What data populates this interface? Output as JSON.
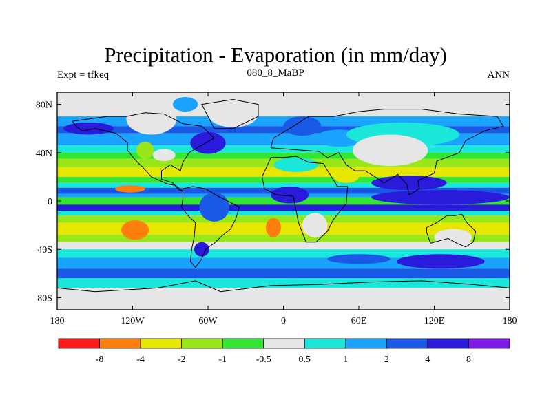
{
  "header": {
    "title": "Precipitation - Evaporation (in mm/day)",
    "left": "Expt = tfkeq",
    "center": "080_8_MaBP",
    "right": "ANN"
  },
  "chart_data": {
    "type": "heatmap",
    "title": "Precipitation - Evaporation (in mm/day)",
    "xlabel": "",
    "ylabel": "",
    "xlim": [
      -180,
      180
    ],
    "ylim": [
      -90,
      90
    ],
    "x_ticks": [
      {
        "value": -180,
        "label": "180"
      },
      {
        "value": -120,
        "label": "120W"
      },
      {
        "value": -60,
        "label": "60W"
      },
      {
        "value": 0,
        "label": "0"
      },
      {
        "value": 60,
        "label": "60E"
      },
      {
        "value": 120,
        "label": "120E"
      },
      {
        "value": 180,
        "label": "180"
      }
    ],
    "y_ticks": [
      {
        "value": 80,
        "label": "80N"
      },
      {
        "value": 40,
        "label": "40N"
      },
      {
        "value": 0,
        "label": "0"
      },
      {
        "value": -40,
        "label": "40S"
      },
      {
        "value": -80,
        "label": "80S"
      }
    ],
    "colorbar": {
      "colors": [
        "#ff1a1a",
        "#ff7f0e",
        "#e6e600",
        "#99e619",
        "#33e633",
        "#e6e6e6",
        "#1ae6d9",
        "#1aa3ff",
        "#1a59e6",
        "#2a1ad9",
        "#7f1ae6"
      ],
      "levels": [
        "-8",
        "-4",
        "-2",
        "-1",
        "-0.5",
        "0.5",
        "1",
        "2",
        "4",
        "8"
      ]
    },
    "zonal_bands": [
      {
        "lat_min": 70,
        "lat_max": 90,
        "class": 5
      },
      {
        "lat_min": 62,
        "lat_max": 70,
        "class": 7
      },
      {
        "lat_min": 56,
        "lat_max": 62,
        "class": 8
      },
      {
        "lat_min": 46,
        "lat_max": 56,
        "class": 7
      },
      {
        "lat_min": 40,
        "lat_max": 46,
        "class": 6
      },
      {
        "lat_min": 35,
        "lat_max": 40,
        "class": 4
      },
      {
        "lat_min": 28,
        "lat_max": 35,
        "class": 3
      },
      {
        "lat_min": 20,
        "lat_max": 28,
        "class": 2
      },
      {
        "lat_min": 15,
        "lat_max": 20,
        "class": 4
      },
      {
        "lat_min": 11,
        "lat_max": 15,
        "class": 6
      },
      {
        "lat_min": 6,
        "lat_max": 11,
        "class": 8
      },
      {
        "lat_min": 3,
        "lat_max": 6,
        "class": 7
      },
      {
        "lat_min": -3,
        "lat_max": 3,
        "class": 4
      },
      {
        "lat_min": -8,
        "lat_max": -3,
        "class": 9
      },
      {
        "lat_min": -12,
        "lat_max": -8,
        "class": 6
      },
      {
        "lat_min": -18,
        "lat_max": -12,
        "class": 3
      },
      {
        "lat_min": -28,
        "lat_max": -18,
        "class": 2
      },
      {
        "lat_min": -34,
        "lat_max": -28,
        "class": 3
      },
      {
        "lat_min": -40,
        "lat_max": -34,
        "class": 5
      },
      {
        "lat_min": -47,
        "lat_max": -40,
        "class": 6
      },
      {
        "lat_min": -56,
        "lat_max": -47,
        "class": 7
      },
      {
        "lat_min": -64,
        "lat_max": -56,
        "class": 8
      },
      {
        "lat_min": -72,
        "lat_max": -64,
        "class": 6
      },
      {
        "lat_min": -80,
        "lat_max": -72,
        "class": 5
      },
      {
        "lat_min": -90,
        "lat_max": -80,
        "class": 5
      }
    ],
    "patches": [
      {
        "lon": -155,
        "lat": 60,
        "w": 40,
        "h": 10,
        "class": 9
      },
      {
        "lon": -105,
        "lat": 68,
        "w": 40,
        "h": 26,
        "class": 5
      },
      {
        "lon": -110,
        "lat": 42,
        "w": 14,
        "h": 14,
        "class": 3
      },
      {
        "lon": -95,
        "lat": 38,
        "w": 18,
        "h": 10,
        "class": 5
      },
      {
        "lon": -60,
        "lat": 48,
        "w": 28,
        "h": 18,
        "class": 9
      },
      {
        "lon": -78,
        "lat": 80,
        "w": 20,
        "h": 12,
        "class": 7
      },
      {
        "lon": -40,
        "lat": 72,
        "w": 40,
        "h": 22,
        "class": 5
      },
      {
        "lon": 15,
        "lat": 62,
        "w": 30,
        "h": 16,
        "class": 8
      },
      {
        "lon": 45,
        "lat": 52,
        "w": 40,
        "h": 14,
        "class": 7
      },
      {
        "lon": 95,
        "lat": 55,
        "w": 90,
        "h": 20,
        "class": 6
      },
      {
        "lon": 10,
        "lat": 30,
        "w": 35,
        "h": 12,
        "class": 6
      },
      {
        "lon": 50,
        "lat": 20,
        "w": 20,
        "h": 10,
        "class": 2
      },
      {
        "lon": 85,
        "lat": 42,
        "w": 60,
        "h": 26,
        "class": 5
      },
      {
        "lon": 100,
        "lat": 15,
        "w": 60,
        "h": 12,
        "class": 9
      },
      {
        "lon": -122,
        "lat": 10,
        "w": 24,
        "h": 6,
        "class": 1
      },
      {
        "lon": -118,
        "lat": -24,
        "w": 22,
        "h": 16,
        "class": 1
      },
      {
        "lon": -8,
        "lat": -22,
        "w": 12,
        "h": 16,
        "class": 1
      },
      {
        "lon": 5,
        "lat": 5,
        "w": 30,
        "h": 14,
        "class": 9
      },
      {
        "lon": 25,
        "lat": -20,
        "w": 20,
        "h": 20,
        "class": 5
      },
      {
        "lon": -55,
        "lat": -5,
        "w": 24,
        "h": 24,
        "class": 8
      },
      {
        "lon": -65,
        "lat": -40,
        "w": 12,
        "h": 12,
        "class": 9
      },
      {
        "lon": 125,
        "lat": 3,
        "w": 110,
        "h": 12,
        "class": 9
      },
      {
        "lon": 135,
        "lat": -30,
        "w": 30,
        "h": 14,
        "class": 5
      },
      {
        "lon": 125,
        "lat": -50,
        "w": 70,
        "h": 12,
        "class": 9
      },
      {
        "lon": 60,
        "lat": -48,
        "w": 50,
        "h": 8,
        "class": 8
      }
    ],
    "land_outlines": [
      [
        [
          -168,
          66
        ],
        [
          -140,
          70
        ],
        [
          -125,
          70
        ],
        [
          -110,
          73
        ],
        [
          -95,
          72
        ],
        [
          -80,
          64
        ],
        [
          -65,
          62
        ],
        [
          -55,
          52
        ],
        [
          -67,
          45
        ],
        [
          -75,
          40
        ],
        [
          -80,
          32
        ],
        [
          -82,
          25
        ],
        [
          -90,
          30
        ],
        [
          -97,
          25
        ],
        [
          -97,
          18
        ],
        [
          -88,
          15
        ],
        [
          -83,
          9
        ],
        [
          -80,
          8
        ],
        [
          -86,
          13
        ],
        [
          -92,
          14
        ],
        [
          -105,
          20
        ],
        [
          -112,
          28
        ],
        [
          -118,
          34
        ],
        [
          -124,
          42
        ],
        [
          -124,
          48
        ],
        [
          -133,
          56
        ],
        [
          -150,
          60
        ],
        [
          -160,
          58
        ],
        [
          -165,
          62
        ],
        [
          -168,
          66
        ]
      ],
      [
        [
          -80,
          10
        ],
        [
          -72,
          12
        ],
        [
          -62,
          10
        ],
        [
          -52,
          4
        ],
        [
          -35,
          -5
        ],
        [
          -38,
          -15
        ],
        [
          -42,
          -23
        ],
        [
          -48,
          -28
        ],
        [
          -55,
          -35
        ],
        [
          -62,
          -40
        ],
        [
          -65,
          -48
        ],
        [
          -70,
          -55
        ],
        [
          -74,
          -50
        ],
        [
          -73,
          -40
        ],
        [
          -71,
          -30
        ],
        [
          -70,
          -18
        ],
        [
          -76,
          -12
        ],
        [
          -81,
          -5
        ],
        [
          -80,
          2
        ],
        [
          -80,
          10
        ]
      ],
      [
        [
          -10,
          36
        ],
        [
          0,
          36
        ],
        [
          10,
          37
        ],
        [
          20,
          32
        ],
        [
          32,
          31
        ],
        [
          34,
          27
        ],
        [
          43,
          12
        ],
        [
          51,
          12
        ],
        [
          50,
          -2
        ],
        [
          40,
          -15
        ],
        [
          35,
          -25
        ],
        [
          26,
          -34
        ],
        [
          18,
          -34
        ],
        [
          12,
          -18
        ],
        [
          9,
          -2
        ],
        [
          8,
          4
        ],
        [
          -5,
          5
        ],
        [
          -15,
          10
        ],
        [
          -17,
          20
        ],
        [
          -10,
          36
        ]
      ],
      [
        [
          -10,
          44
        ],
        [
          -8,
          52
        ],
        [
          5,
          60
        ],
        [
          20,
          70
        ],
        [
          40,
          70
        ],
        [
          60,
          74
        ],
        [
          80,
          76
        ],
        [
          110,
          76
        ],
        [
          140,
          72
        ],
        [
          170,
          70
        ],
        [
          175,
          62
        ],
        [
          160,
          58
        ],
        [
          145,
          50
        ],
        [
          140,
          40
        ],
        [
          122,
          33
        ],
        [
          120,
          23
        ],
        [
          107,
          17
        ],
        [
          108,
          10
        ],
        [
          100,
          5
        ],
        [
          98,
          14
        ],
        [
          91,
          22
        ],
        [
          80,
          15
        ],
        [
          73,
          20
        ],
        [
          65,
          25
        ],
        [
          57,
          25
        ],
        [
          50,
          30
        ],
        [
          44,
          40
        ],
        [
          35,
          36
        ],
        [
          28,
          41
        ],
        [
          15,
          42
        ],
        [
          3,
          43
        ],
        [
          -10,
          44
        ]
      ],
      [
        [
          114,
          -22
        ],
        [
          122,
          -18
        ],
        [
          130,
          -12
        ],
        [
          137,
          -12
        ],
        [
          142,
          -11
        ],
        [
          146,
          -18
        ],
        [
          153,
          -25
        ],
        [
          151,
          -34
        ],
        [
          145,
          -38
        ],
        [
          138,
          -35
        ],
        [
          131,
          -31
        ],
        [
          117,
          -35
        ],
        [
          114,
          -26
        ],
        [
          114,
          -22
        ]
      ],
      [
        [
          -55,
          60
        ],
        [
          -40,
          60
        ],
        [
          -20,
          70
        ],
        [
          -20,
          80
        ],
        [
          -40,
          84
        ],
        [
          -65,
          80
        ],
        [
          -60,
          70
        ],
        [
          -55,
          60
        ]
      ],
      [
        [
          -180,
          -72
        ],
        [
          -150,
          -75
        ],
        [
          -100,
          -72
        ],
        [
          -70,
          -66
        ],
        [
          -50,
          -75
        ],
        [
          -10,
          -70
        ],
        [
          30,
          -69
        ],
        [
          70,
          -67
        ],
        [
          110,
          -66
        ],
        [
          150,
          -69
        ],
        [
          180,
          -72
        ]
      ]
    ]
  }
}
